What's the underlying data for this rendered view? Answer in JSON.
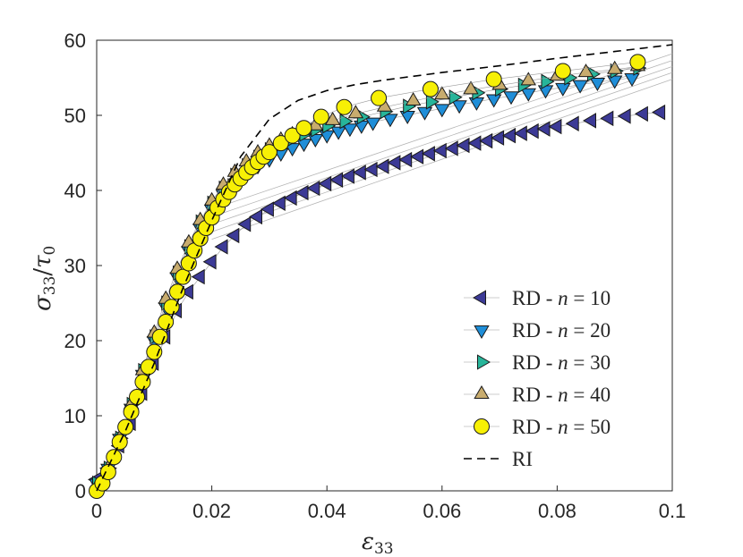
{
  "chart_data": {
    "type": "scatter",
    "title": "",
    "xlabel_base": "ε",
    "xlabel_sub": "33",
    "ylabel_base": "σ",
    "ylabel_sub": "33",
    "ylabel_den": "τ",
    "ylabel_den_sub": "0",
    "xlim": [
      0,
      0.1
    ],
    "ylim": [
      0,
      60
    ],
    "x_ticks": [
      0,
      0.02,
      0.04,
      0.06,
      0.08,
      0.1
    ],
    "x_tick_labels": [
      "0",
      "0.02",
      "0.04",
      "0.06",
      "0.08",
      "0.1"
    ],
    "y_ticks": [
      0,
      10,
      20,
      30,
      40,
      50,
      60
    ],
    "y_tick_labels": [
      "0",
      "10",
      "20",
      "30",
      "40",
      "50",
      "60"
    ],
    "legend_position": "lower-right",
    "series": [
      {
        "name": "RD - n = 10",
        "legend_prefix": "RD - ",
        "legend_var": "n",
        "legend_suffix": " = 10",
        "marker": "triangle-left",
        "color": "#3c3a96",
        "x": [
          0,
          0.002,
          0.004,
          0.006,
          0.008,
          0.01,
          0.012,
          0.014,
          0.016,
          0.018,
          0.02,
          0.022,
          0.024,
          0.026,
          0.028,
          0.03,
          0.032,
          0.034,
          0.036,
          0.038,
          0.04,
          0.042,
          0.044,
          0.046,
          0.048,
          0.05,
          0.052,
          0.054,
          0.056,
          0.058,
          0.06,
          0.062,
          0.064,
          0.066,
          0.068,
          0.07,
          0.072,
          0.074,
          0.076,
          0.078,
          0.08,
          0.083,
          0.086,
          0.089,
          0.092,
          0.095,
          0.098
        ],
        "y": [
          1.5,
          3,
          6,
          9,
          13,
          17,
          20.5,
          24,
          26.5,
          28.5,
          30.5,
          32.5,
          34,
          35.5,
          36.5,
          37.5,
          38.3,
          39,
          39.7,
          40.3,
          40.9,
          41.4,
          41.9,
          42.4,
          42.8,
          43.2,
          43.7,
          44.1,
          44.5,
          44.9,
          45.3,
          45.6,
          46,
          46.3,
          46.6,
          47,
          47.3,
          47.6,
          47.9,
          48.2,
          48.5,
          48.9,
          49.3,
          49.6,
          49.9,
          50.2,
          50.4
        ]
      },
      {
        "name": "RD - n = 20",
        "legend_prefix": "RD - ",
        "legend_var": "n",
        "legend_suffix": " = 20",
        "marker": "triangle-down",
        "color": "#1f8ed8",
        "x": [
          0,
          0.002,
          0.004,
          0.006,
          0.008,
          0.01,
          0.012,
          0.014,
          0.016,
          0.018,
          0.02,
          0.022,
          0.024,
          0.026,
          0.028,
          0.03,
          0.032,
          0.034,
          0.036,
          0.038,
          0.04,
          0.042,
          0.044,
          0.046,
          0.048,
          0.051,
          0.054,
          0.057,
          0.06,
          0.063,
          0.066,
          0.069,
          0.072,
          0.075,
          0.078,
          0.081,
          0.084,
          0.087,
          0.09,
          0.093
        ],
        "y": [
          1,
          3,
          7,
          11,
          15.5,
          20,
          24.5,
          28.5,
          32,
          35,
          37.5,
          39.5,
          41,
          42.3,
          43.3,
          44.2,
          45,
          45.7,
          46.3,
          46.9,
          47.4,
          47.9,
          48.3,
          48.7,
          49.1,
          49.6,
          50,
          50.5,
          50.9,
          51.4,
          51.8,
          52.2,
          52.6,
          53,
          53.4,
          53.7,
          54.1,
          54.4,
          54.7,
          55
        ]
      },
      {
        "name": "RD - n = 30",
        "legend_prefix": "RD - ",
        "legend_var": "n",
        "legend_suffix": " = 30",
        "marker": "triangle-right",
        "color": "#27b59a",
        "x": [
          0,
          0.002,
          0.004,
          0.006,
          0.008,
          0.01,
          0.012,
          0.014,
          0.016,
          0.018,
          0.02,
          0.022,
          0.024,
          0.026,
          0.028,
          0.03,
          0.032,
          0.034,
          0.036,
          0.038,
          0.04,
          0.043,
          0.046,
          0.05,
          0.054,
          0.058,
          0.062,
          0.066,
          0.07,
          0.074,
          0.078,
          0.082,
          0.086,
          0.09,
          0.094
        ],
        "y": [
          1,
          3,
          7,
          11.5,
          16,
          20.5,
          25,
          29,
          32.5,
          35.8,
          38.3,
          40.3,
          42,
          43.3,
          44.4,
          45.4,
          46.2,
          46.9,
          47.5,
          48.1,
          48.6,
          49.2,
          49.8,
          50.5,
          51.2,
          51.8,
          52.4,
          53,
          53.5,
          54,
          54.5,
          55,
          55.5,
          55.9,
          56.3
        ]
      },
      {
        "name": "RD - n = 40",
        "legend_prefix": "RD - ",
        "legend_var": "n",
        "legend_suffix": " = 40",
        "marker": "triangle-up",
        "color": "#c8ac6e",
        "x": [
          0,
          0.002,
          0.004,
          0.006,
          0.008,
          0.01,
          0.012,
          0.014,
          0.016,
          0.018,
          0.02,
          0.022,
          0.024,
          0.026,
          0.028,
          0.03,
          0.032,
          0.034,
          0.036,
          0.038,
          0.041,
          0.045,
          0.05,
          0.055,
          0.06,
          0.065,
          0.07,
          0.075,
          0.08,
          0.085,
          0.09,
          0.094
        ],
        "y": [
          0.5,
          3,
          7,
          11.5,
          16,
          21,
          25.5,
          29.5,
          33,
          36,
          38.6,
          40.7,
          42.4,
          43.8,
          45,
          45.9,
          46.7,
          47.4,
          48,
          48.6,
          49.3,
          50.2,
          51.1,
          51.9,
          52.7,
          53.4,
          54,
          54.6,
          55.2,
          55.7,
          56.1,
          56.5
        ]
      },
      {
        "name": "RD - n = 50",
        "legend_prefix": "RD - ",
        "legend_var": "n",
        "legend_suffix": " = 50",
        "marker": "circle",
        "color": "#f7f005",
        "x": [
          0,
          0.001,
          0.002,
          0.003,
          0.004,
          0.005,
          0.006,
          0.007,
          0.008,
          0.009,
          0.01,
          0.011,
          0.012,
          0.013,
          0.014,
          0.015,
          0.016,
          0.017,
          0.018,
          0.019,
          0.02,
          0.021,
          0.022,
          0.023,
          0.024,
          0.025,
          0.026,
          0.027,
          0.028,
          0.029,
          0.03,
          0.032,
          0.034,
          0.036,
          0.039,
          0.043,
          0.049,
          0.058,
          0.069,
          0.081,
          0.094
        ],
        "y": [
          0,
          1,
          2.5,
          4.5,
          6.5,
          8.5,
          10.5,
          12.5,
          14.5,
          16.5,
          18.5,
          20.5,
          22.5,
          24.5,
          26.5,
          28.5,
          30.3,
          32,
          33.6,
          35,
          36.4,
          37.7,
          38.8,
          39.8,
          40.8,
          41.6,
          42.4,
          43.1,
          43.8,
          44.5,
          45.1,
          46.3,
          47.3,
          48.3,
          49.8,
          51.1,
          52.3,
          53.5,
          54.8,
          55.9,
          57.1
        ]
      }
    ],
    "guide_lines": [
      {
        "name": "guide-1",
        "x": [
          0.02,
          0.1
        ],
        "y": [
          33.5,
          54.8
        ]
      },
      {
        "name": "guide-2",
        "x": [
          0.02,
          0.1
        ],
        "y": [
          34.5,
          55.7
        ]
      },
      {
        "name": "guide-3",
        "x": [
          0.02,
          0.1
        ],
        "y": [
          35.5,
          56.5
        ]
      },
      {
        "name": "guide-4",
        "x": [
          0.02,
          0.1
        ],
        "y": [
          36.5,
          57.3
        ]
      },
      {
        "name": "guide-5",
        "x": [
          0.02,
          0.1
        ],
        "y": [
          37.5,
          58.2
        ]
      }
    ],
    "reference": {
      "name": "RI",
      "line_style": "dashed",
      "color": "#000000",
      "x": [
        0,
        0.005,
        0.01,
        0.015,
        0.02,
        0.025,
        0.03,
        0.035,
        0.04,
        0.045,
        0.05,
        0.06,
        0.07,
        0.08,
        0.09,
        0.1
      ],
      "y": [
        0,
        8,
        17,
        27,
        36,
        44.5,
        49.5,
        52,
        53.3,
        54.1,
        54.7,
        55.7,
        56.6,
        57.6,
        58.5,
        59.4
      ]
    }
  }
}
